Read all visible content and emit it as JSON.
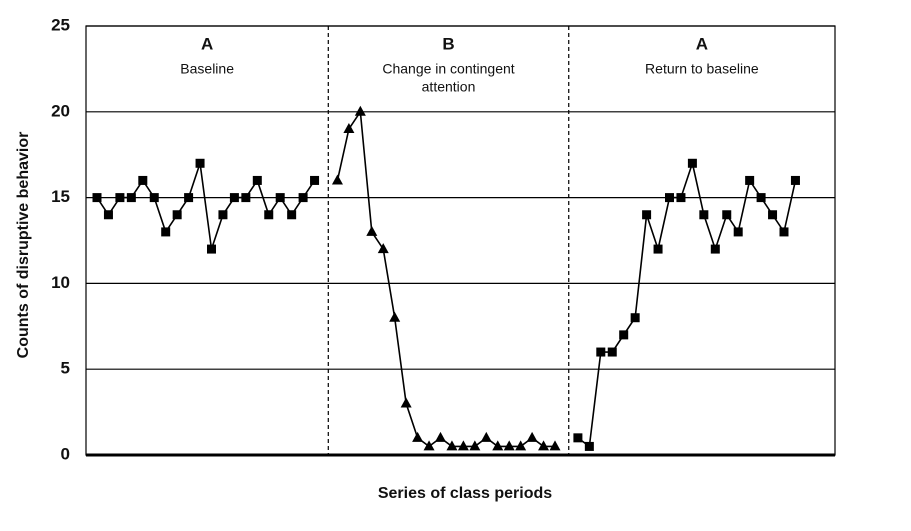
{
  "chart_data": {
    "type": "line",
    "ylabel": "Counts of disruptive behavior",
    "xlabel": "Series of class periods",
    "ylim": [
      0,
      25
    ],
    "yticks": [
      0,
      5,
      10,
      15,
      20,
      25
    ],
    "grid": true,
    "phases": [
      {
        "letter": "A",
        "name": [
          "Baseline"
        ]
      },
      {
        "letter": "B",
        "name": [
          "Change in contingent",
          "attention"
        ]
      },
      {
        "letter": "A",
        "name": [
          "Return to baseline"
        ]
      }
    ],
    "series": [
      {
        "marker": "square",
        "color": "#000000",
        "values": [
          15,
          14,
          15,
          15,
          16,
          15,
          13,
          14,
          15,
          17,
          12,
          14,
          15,
          15,
          16,
          14,
          15,
          14,
          15,
          16
        ]
      },
      {
        "marker": "triangle",
        "color": "#000000",
        "values": [
          16,
          19,
          20,
          13,
          12,
          8,
          3,
          1,
          0.5,
          1,
          0.5,
          0.5,
          0.5,
          1,
          0.5,
          0.5,
          0.5,
          1,
          0.5,
          0.5
        ]
      },
      {
        "marker": "square",
        "color": "#000000",
        "values": [
          1,
          0.5,
          6,
          6,
          7,
          8,
          14,
          12,
          15,
          15,
          17,
          14,
          12,
          14,
          13,
          16,
          15,
          14,
          13,
          16
        ]
      }
    ]
  }
}
